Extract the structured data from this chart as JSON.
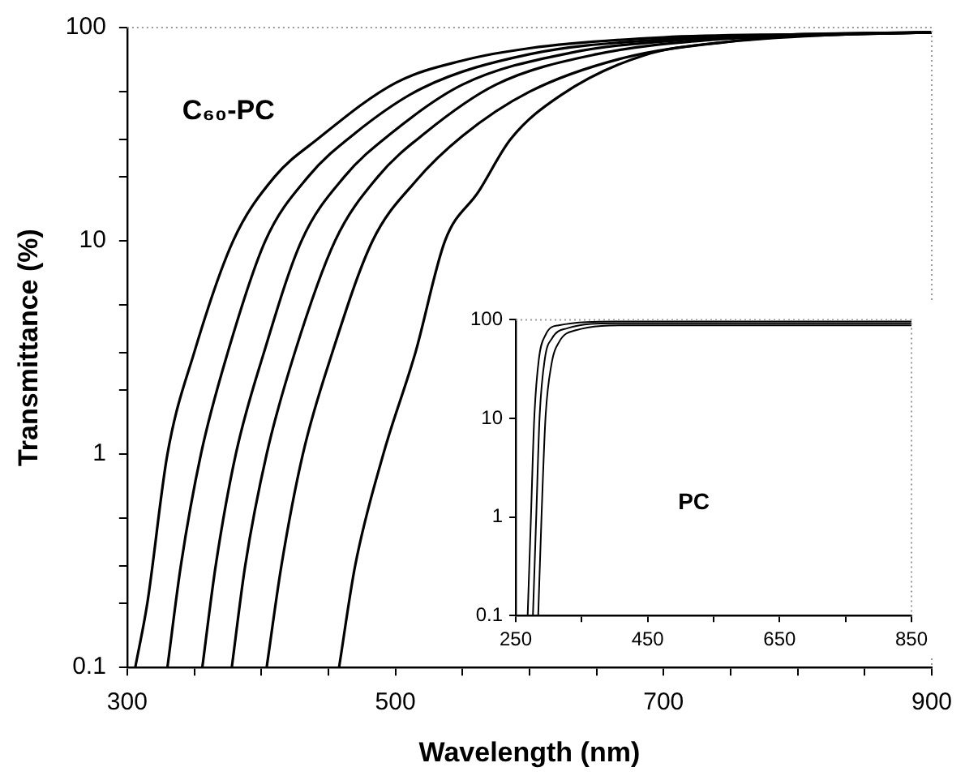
{
  "chart_data": [
    {
      "type": "line",
      "xlabel": "Wavelength (nm)",
      "ylabel": "Transmittance (%)",
      "log": "y",
      "legend": false,
      "grid": false,
      "marker": "none",
      "line_style": "solid",
      "xlim": [
        300,
        900
      ],
      "xticks": [
        300,
        {
          "value": 350,
          "label": null
        },
        {
          "value": 400,
          "label": null
        },
        {
          "value": 450,
          "label": null
        },
        500,
        {
          "value": 550,
          "label": null
        },
        {
          "value": 600,
          "label": null
        },
        {
          "value": 650,
          "label": null
        },
        700,
        {
          "value": 750,
          "label": null
        },
        {
          "value": 800,
          "label": null
        },
        {
          "value": 850,
          "label": null
        },
        900
      ],
      "ylim": [
        0.1,
        100
      ],
      "yticks": [
        0.1,
        {
          "value": 0.2,
          "label": null
        },
        {
          "value": 0.3,
          "label": null
        },
        {
          "value": 0.5,
          "label": null
        },
        1,
        {
          "value": 2,
          "label": null
        },
        {
          "value": 3,
          "label": null
        },
        {
          "value": 5,
          "label": null
        },
        10,
        {
          "value": 20,
          "label": null
        },
        {
          "value": 30,
          "label": null
        },
        {
          "value": 50,
          "label": null
        },
        100
      ],
      "annotations": [
        "C₆₀-PC"
      ],
      "series": [
        {
          "color": "#000000",
          "x": [
            306,
            315,
            330,
            350,
            379,
            410,
            442,
            500,
            550,
            600,
            700,
            800,
            900
          ],
          "values": [
            0.1,
            0.2,
            1,
            3,
            10,
            20,
            30,
            55,
            70,
            80,
            90,
            93,
            95
          ]
        },
        {
          "color": "#000000",
          "x": [
            330,
            340,
            355,
            375,
            403,
            435,
            470,
            520,
            600,
            700,
            800,
            900
          ],
          "values": [
            0.1,
            0.3,
            1,
            3,
            10,
            20,
            32,
            52,
            75,
            88,
            93,
            95
          ]
        },
        {
          "color": "#000000",
          "x": [
            356,
            366,
            381,
            402,
            430,
            462,
            497,
            550,
            630,
            720,
            800,
            900
          ],
          "values": [
            0.1,
            0.3,
            1,
            3,
            10,
            20,
            32,
            54,
            76,
            88,
            92.5,
            95
          ]
        },
        {
          "color": "#000000",
          "x": [
            378,
            388,
            404,
            425,
            455,
            487,
            522,
            575,
            650,
            740,
            820,
            900
          ],
          "values": [
            0.1,
            0.3,
            1,
            3,
            10,
            20,
            32,
            54,
            75,
            88,
            92.5,
            95
          ]
        },
        {
          "color": "#000000",
          "x": [
            404,
            415,
            431,
            453,
            483,
            515,
            550,
            600,
            670,
            750,
            820,
            900
          ],
          "values": [
            0.1,
            0.3,
            1,
            3,
            10,
            19,
            31,
            50,
            72,
            86,
            92,
            95
          ]
        },
        {
          "color": "#000000",
          "x": [
            458,
            470,
            491,
            515,
            537,
            562,
            586,
            623,
            685,
            750,
            810,
            900
          ],
          "values": [
            0.1,
            0.3,
            1,
            3,
            10,
            17,
            30,
            48,
            74,
            86,
            92,
            95
          ]
        }
      ]
    },
    {
      "type": "line",
      "log": "y",
      "legend": false,
      "grid": false,
      "marker": "none",
      "line_style": "solid",
      "xlim": [
        250,
        850
      ],
      "xticks": [
        250,
        {
          "value": 350,
          "label": null
        },
        450,
        {
          "value": 550,
          "label": null
        },
        650,
        {
          "value": 750,
          "label": null
        },
        850
      ],
      "ylim": [
        0.1,
        100
      ],
      "yticks": [
        0.1,
        1,
        10,
        100
      ],
      "annotations": [
        "PC"
      ],
      "series": [
        {
          "color": "#000000",
          "x": [
            268,
            273,
            278,
            285,
            295,
            315,
            400,
            850
          ],
          "values": [
            0.1,
            1,
            10,
            40,
            70,
            88,
            96,
            96
          ]
        },
        {
          "color": "#000000",
          "x": [
            276,
            281,
            286,
            294,
            305,
            328,
            400,
            850
          ],
          "values": [
            0.1,
            1,
            10,
            40,
            65,
            82,
            92,
            92
          ]
        },
        {
          "color": "#000000",
          "x": [
            284,
            289,
            295,
            304,
            316,
            340,
            420,
            850
          ],
          "values": [
            0.1,
            1,
            10,
            35,
            60,
            78,
            88,
            88
          ]
        }
      ]
    }
  ]
}
